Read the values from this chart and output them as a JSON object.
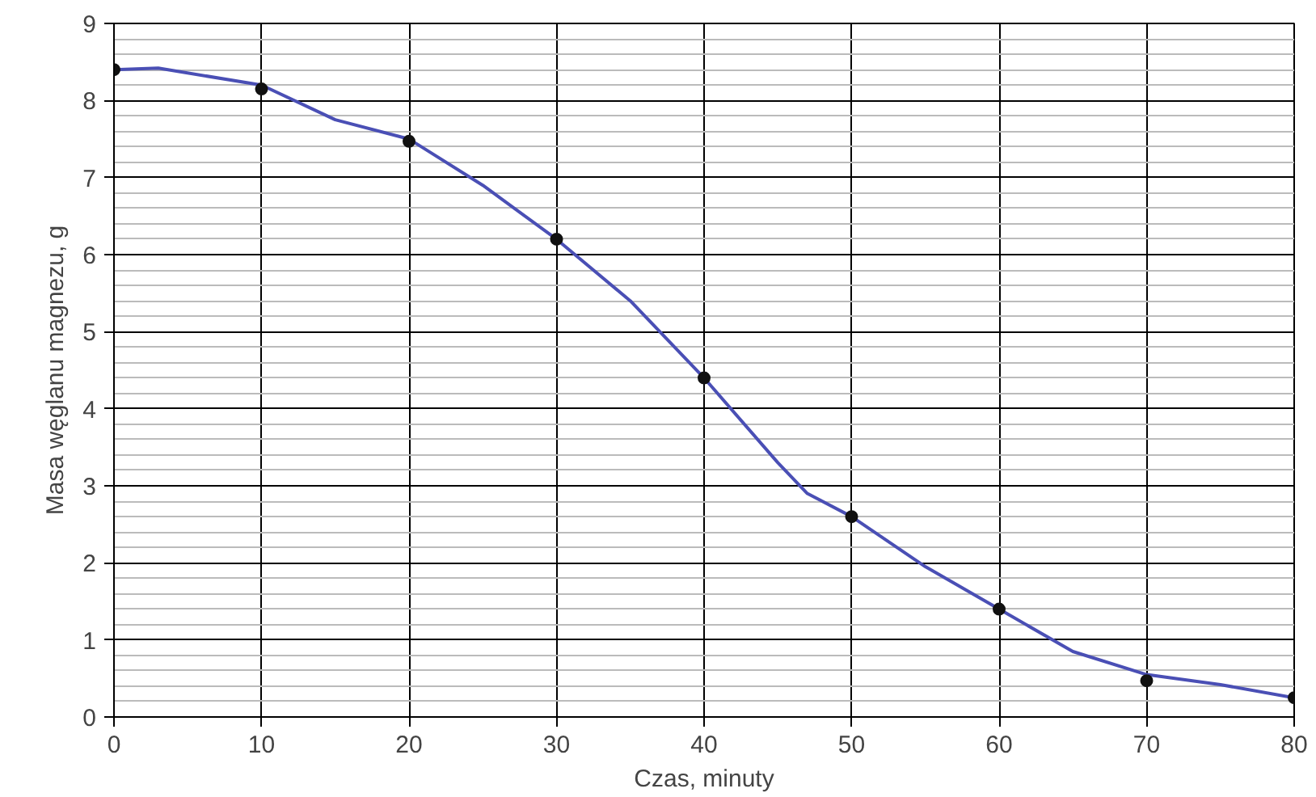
{
  "chart_data": {
    "type": "line",
    "xlabel": "Czas, minuty",
    "ylabel": "Masa węglanu magnezu, g",
    "xlim": [
      0,
      80
    ],
    "ylim": [
      0,
      9
    ],
    "xticks": [
      0,
      10,
      20,
      30,
      40,
      50,
      60,
      70,
      80
    ],
    "yticks": [
      0,
      1,
      2,
      3,
      4,
      5,
      6,
      7,
      8,
      9
    ],
    "grid": true,
    "series": [
      {
        "color": "#4a4fb5",
        "marker": "none",
        "x": [
          0,
          3,
          10,
          15,
          20,
          25,
          30,
          35,
          40,
          45,
          47,
          50,
          55,
          60,
          65,
          70,
          75,
          80
        ],
        "values": [
          8.4,
          8.42,
          8.2,
          7.75,
          7.5,
          6.9,
          6.2,
          5.4,
          4.4,
          3.3,
          2.9,
          2.6,
          1.95,
          1.4,
          0.85,
          0.55,
          0.42,
          0.25
        ]
      },
      {
        "type": "scatter",
        "color": "#111111",
        "marker": "circle",
        "x": [
          0,
          10,
          20,
          30,
          40,
          50,
          60,
          70,
          80
        ],
        "values": [
          8.4,
          8.15,
          7.47,
          6.2,
          4.4,
          2.6,
          1.4,
          0.47,
          0.25
        ]
      }
    ]
  }
}
